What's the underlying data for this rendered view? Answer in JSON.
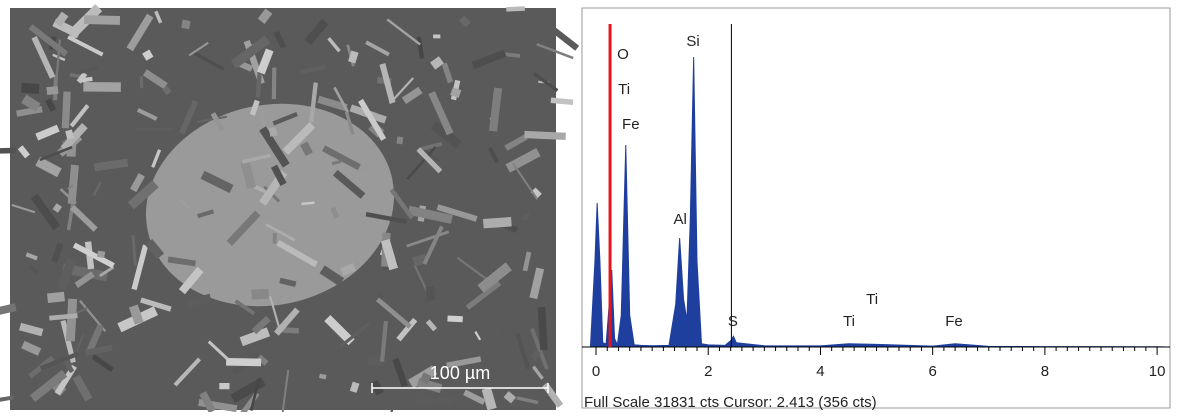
{
  "image": {
    "scale_bar": "100 µm"
  },
  "chart_data": {
    "type": "area",
    "x": [
      -0.1,
      -0.02,
      0.02,
      0.07,
      0.12,
      0.18,
      0.22,
      0.28,
      0.33,
      0.38,
      0.45,
      0.53,
      0.6,
      0.68,
      0.8,
      1.0,
      1.3,
      1.42,
      1.49,
      1.56,
      1.62,
      1.68,
      1.74,
      1.8,
      1.88,
      2.0,
      2.3,
      2.4,
      2.45,
      2.5,
      3,
      4,
      4.5,
      5,
      6,
      6.4,
      7,
      8,
      9,
      10,
      10.2
    ],
    "values": [
      0,
      8000,
      13520,
      8000,
      400,
      300,
      3000,
      7230,
      800,
      200,
      3000,
      18970,
      3000,
      200,
      150,
      120,
      150,
      4000,
      10230,
      4500,
      2500,
      12000,
      27230,
      8000,
      300,
      200,
      150,
      600,
      1000,
      400,
      120,
      100,
      300,
      250,
      80,
      300,
      60,
      40,
      30,
      20,
      0
    ],
    "color": "#1f3f9f",
    "xlim": [
      -0.25,
      10.23
    ],
    "xticks": [
      0,
      2,
      4,
      6,
      8,
      10
    ],
    "ylim": [
      0,
      31831
    ],
    "markers": [
      {
        "x": 0.25,
        "color": "#e8141c"
      },
      {
        "x": 2.413,
        "color": "#000000"
      }
    ],
    "annotations": [
      {
        "text": "O",
        "x": 0.48,
        "y": 27420
      },
      {
        "text": "Ti",
        "x": 0.5,
        "y": 24130
      },
      {
        "text": "Fe",
        "x": 0.62,
        "y": 20850
      },
      {
        "text": "Si",
        "x": 1.73,
        "y": 28640
      },
      {
        "text": "Al",
        "x": 1.5,
        "y": 11930
      },
      {
        "text": "S",
        "x": 2.44,
        "y": 2350
      },
      {
        "text": "Ti",
        "x": 4.51,
        "y": 2350
      },
      {
        "text": "Ti",
        "x": 4.92,
        "y": 4410
      },
      {
        "text": "Fe",
        "x": 6.38,
        "y": 2350
      }
    ],
    "footer": "Full Scale 31831 cts Cursor: 2.413  (356 cts)"
  }
}
